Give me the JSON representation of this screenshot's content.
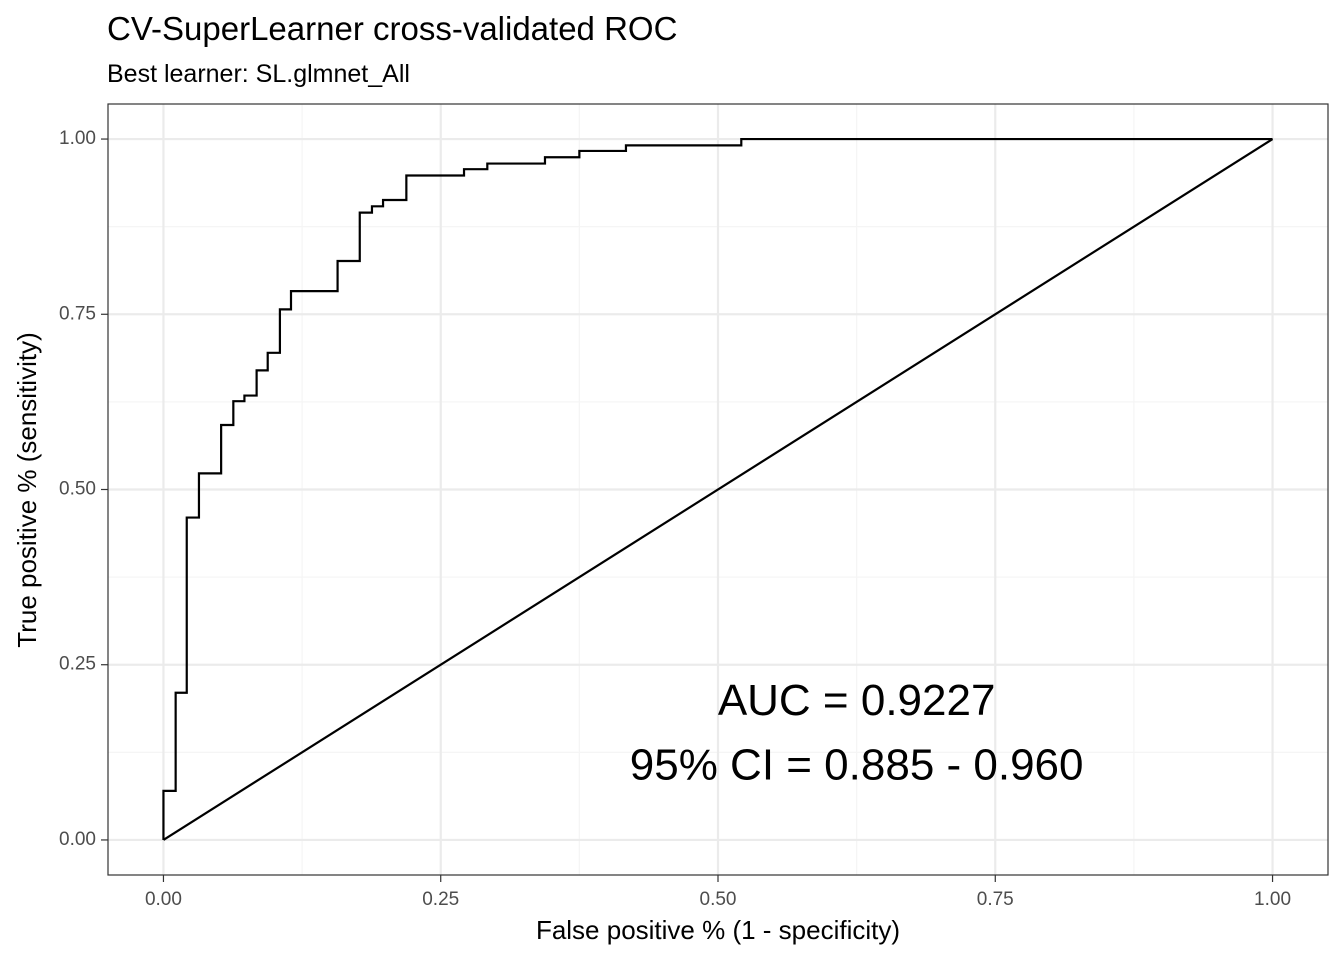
{
  "chart_data": {
    "type": "line",
    "title": "CV-SuperLearner cross-validated ROC",
    "subtitle": "Best learner: SL.glmnet_All",
    "xlabel": "False positive % (1 - specificity)",
    "ylabel": "True positive % (sensitivity)",
    "xlim": [
      -0.05,
      1.05
    ],
    "ylim": [
      -0.05,
      1.05
    ],
    "x_ticks": [
      0.0,
      0.25,
      0.5,
      0.75,
      1.0
    ],
    "x_tick_labels": [
      "0.00",
      "0.25",
      "0.50",
      "0.75",
      "1.00"
    ],
    "y_ticks": [
      0.0,
      0.25,
      0.5,
      0.75,
      1.0
    ],
    "y_tick_labels": [
      "0.00",
      "0.25",
      "0.50",
      "0.75",
      "1.00"
    ],
    "grid": true,
    "series": [
      {
        "x": [
          0.0,
          0.0,
          0.011,
          0.011,
          0.021,
          0.021,
          0.032,
          0.032,
          0.052,
          0.052,
          0.063,
          0.063,
          0.073,
          0.073,
          0.084,
          0.084,
          0.094,
          0.094,
          0.105,
          0.105,
          0.115,
          0.115,
          0.157,
          0.157,
          0.177,
          0.177,
          0.188,
          0.188,
          0.198,
          0.198,
          0.219,
          0.219,
          0.271,
          0.271,
          0.292,
          0.292,
          0.344,
          0.344,
          0.375,
          0.375,
          0.417,
          0.417,
          0.521,
          0.521,
          1.0
        ],
        "y": [
          0.0,
          0.07,
          0.07,
          0.21,
          0.21,
          0.46,
          0.46,
          0.523,
          0.523,
          0.592,
          0.592,
          0.626,
          0.626,
          0.634,
          0.634,
          0.67,
          0.67,
          0.695,
          0.695,
          0.757,
          0.757,
          0.783,
          0.783,
          0.826,
          0.826,
          0.895,
          0.895,
          0.904,
          0.904,
          0.913,
          0.913,
          0.948,
          0.948,
          0.957,
          0.957,
          0.965,
          0.965,
          0.974,
          0.974,
          0.983,
          0.983,
          0.991,
          0.991,
          1.0,
          1.0
        ]
      },
      {
        "x": [
          0.0,
          1.0
        ],
        "y": [
          0.0,
          1.0
        ]
      }
    ],
    "annotations": [
      {
        "text": "AUC = 0.9227",
        "x": 0.625,
        "y": 0.195
      },
      {
        "text": "95% CI = 0.885 - 0.960",
        "x": 0.625,
        "y": 0.103
      }
    ]
  },
  "colors": {
    "panel_border": "#333333",
    "grid_major": "#ebebeb",
    "grid_minor": "#f5f5f5",
    "line": "#000000",
    "tick_text": "#4d4d4d"
  }
}
